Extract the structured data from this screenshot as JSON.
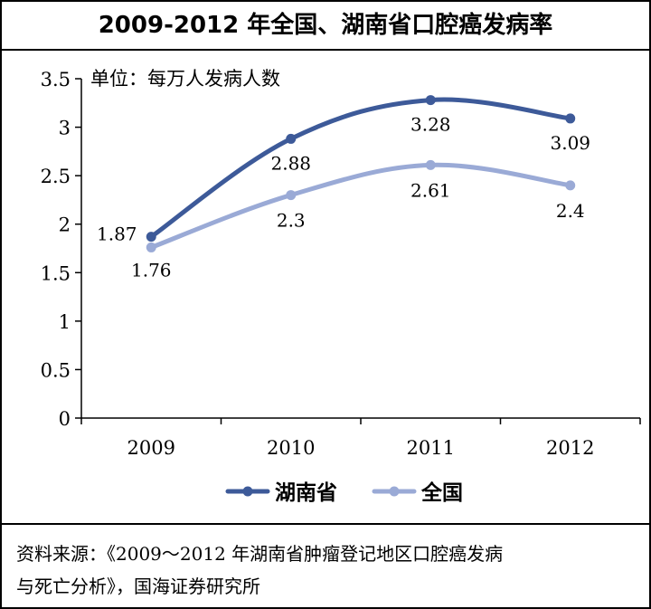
{
  "chart_data": {
    "type": "line",
    "title": "2009-2012 年全国、湖南省口腔癌发病率",
    "unit_note": "单位：每万人发病人数",
    "x": [
      "2009",
      "2010",
      "2011",
      "2012"
    ],
    "ylim": [
      0,
      3.5
    ],
    "yticks": [
      "0",
      "0.5",
      "1",
      "1.5",
      "2",
      "2.5",
      "3",
      "3.5"
    ],
    "ytick_values": [
      0,
      0.5,
      1,
      1.5,
      2,
      2.5,
      3,
      3.5
    ],
    "grid": false,
    "legend_position": "bottom-center",
    "series": [
      {
        "name": "湖南省",
        "color": "#3d5a99",
        "values": [
          1.87,
          2.88,
          3.28,
          3.09
        ],
        "labels": [
          "1.87",
          "2.88",
          "3.28",
          "3.09"
        ]
      },
      {
        "name": "全国",
        "color": "#9aaad6",
        "values": [
          1.76,
          2.3,
          2.61,
          2.4
        ],
        "labels": [
          "1.76",
          "2.3",
          "2.61",
          "2.4"
        ]
      }
    ]
  },
  "source": {
    "line1": "资料来源：《2009～2012 年湖南省肿瘤登记地区口腔癌发病",
    "line2": "与死亡分析》，国海证券研究所"
  }
}
